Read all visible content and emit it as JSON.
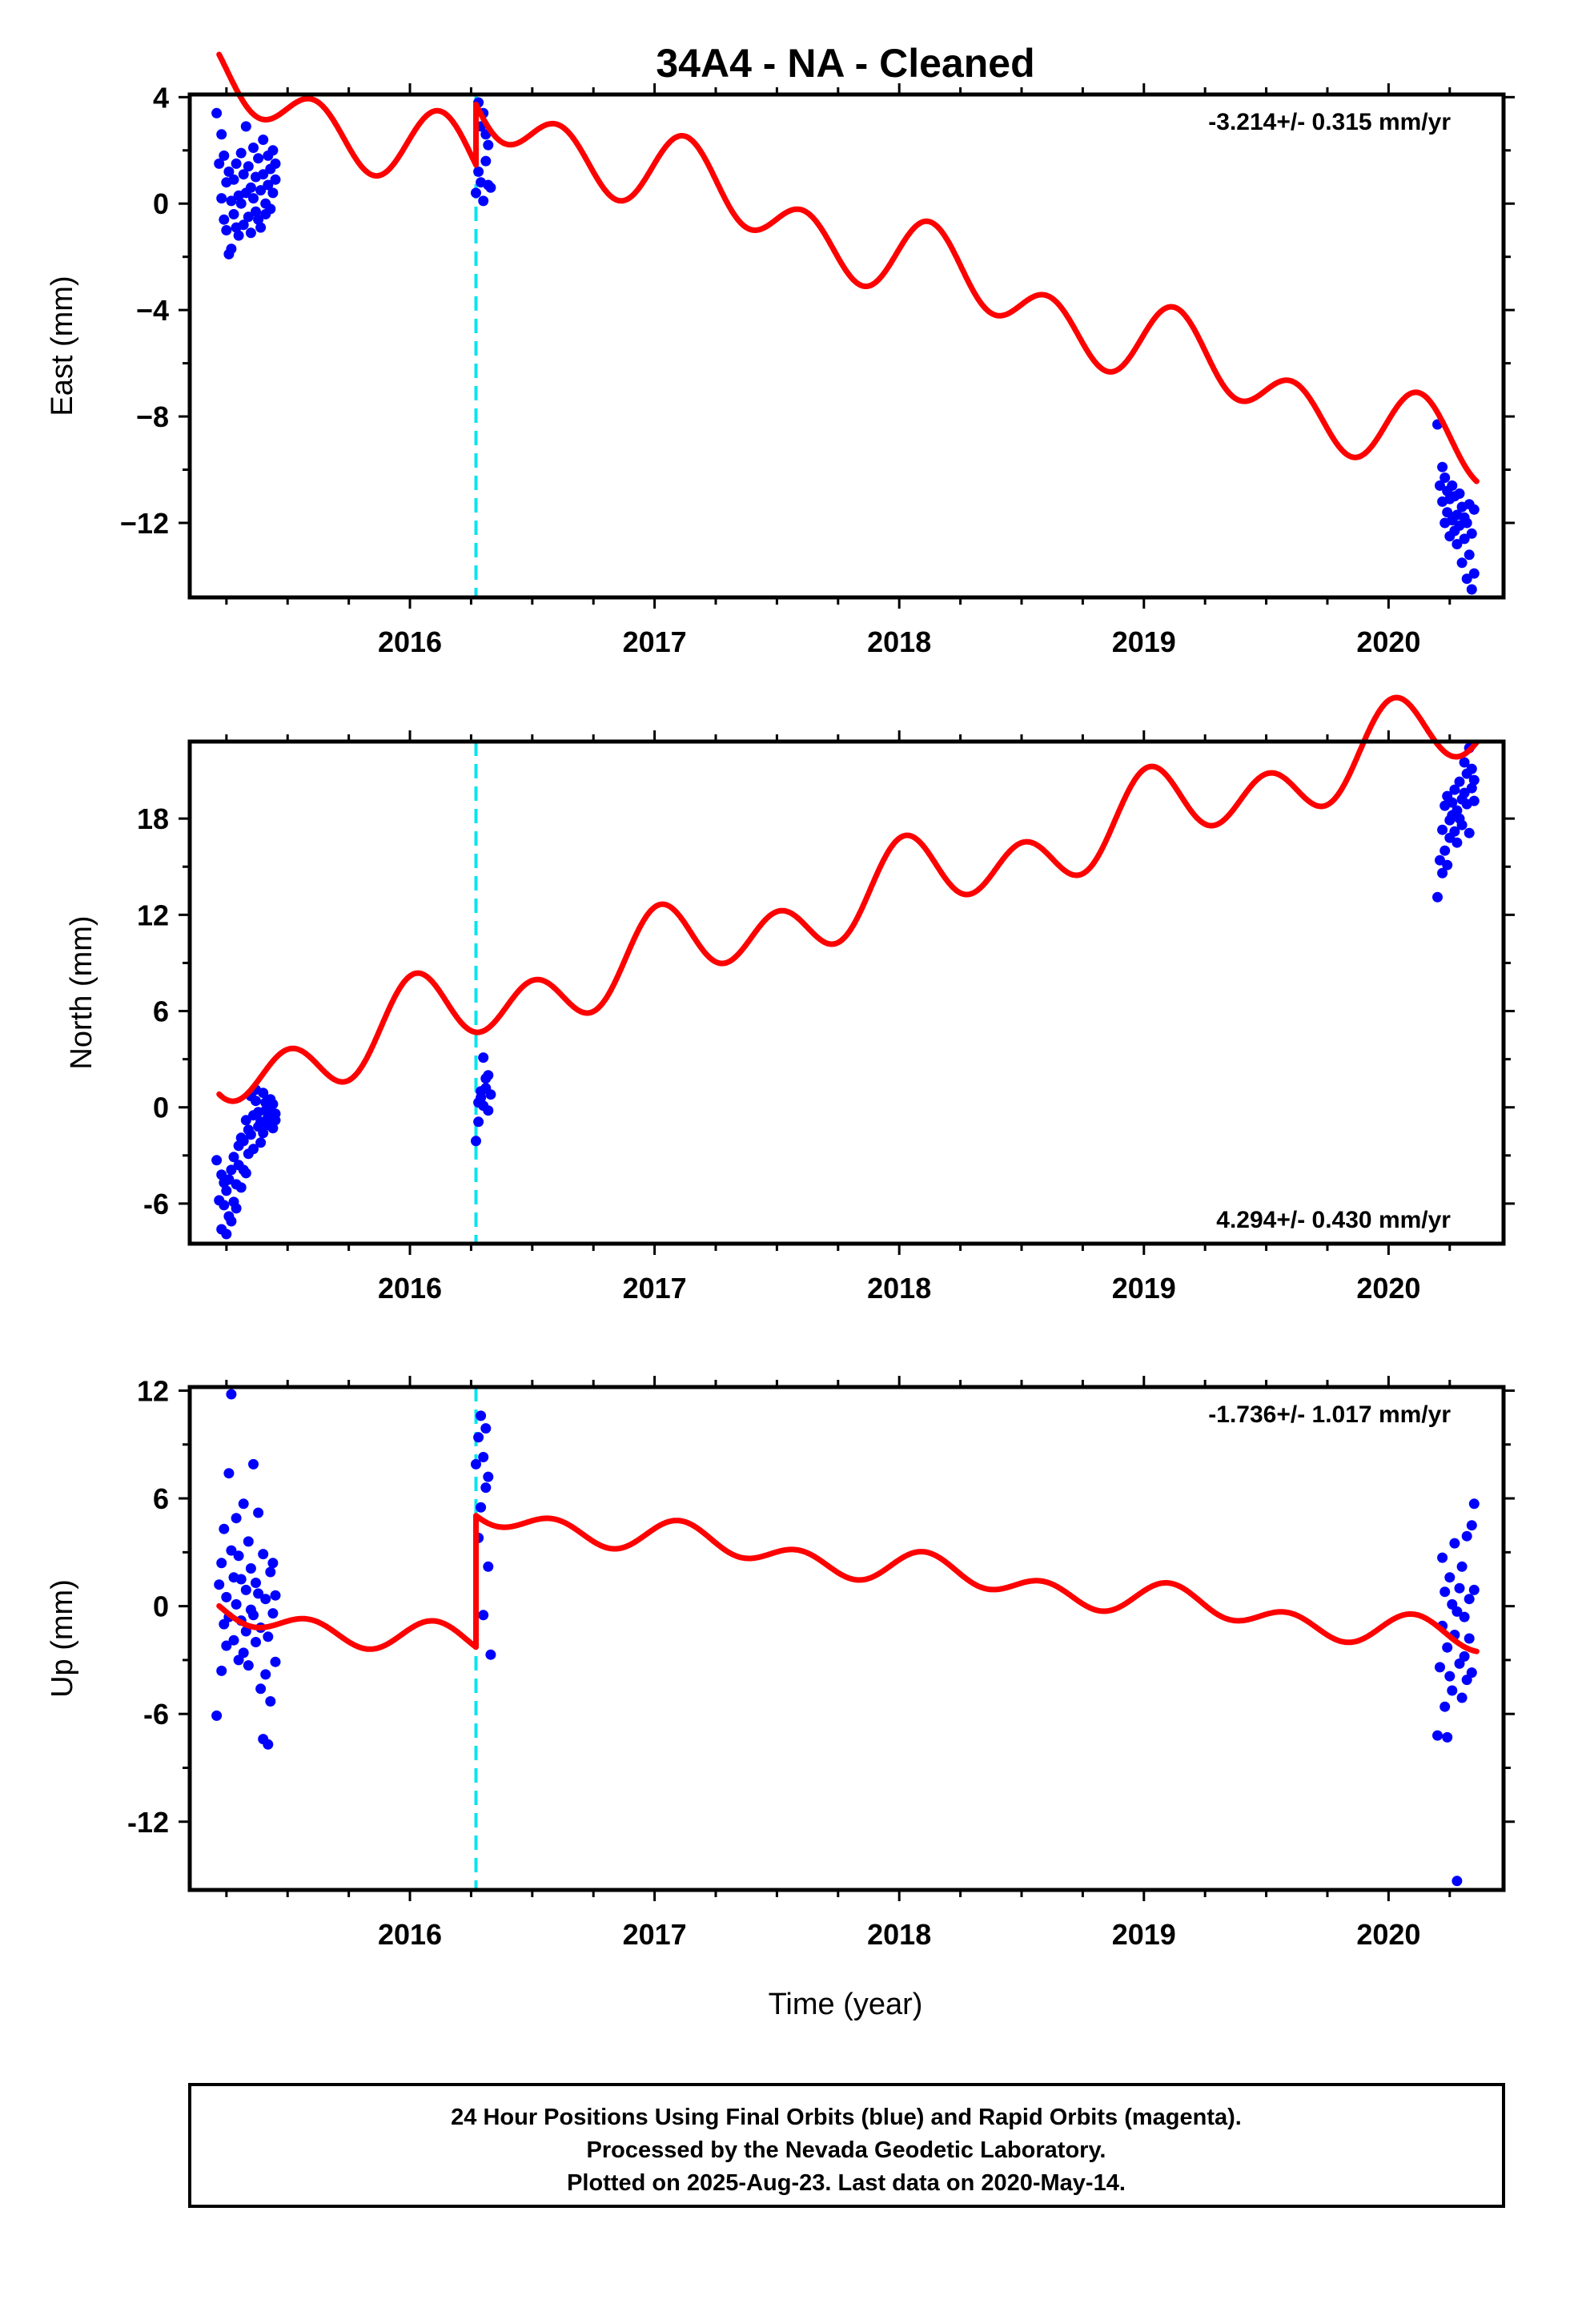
{
  "title": "34A4  - NA - Cleaned",
  "footer": {
    "lines": [
      "24 Hour Positions Using Final Orbits (blue) and Rapid Orbits (magenta).",
      "Processed by the Nevada Geodetic Laboratory.",
      "Plotted on 2025-Aug-23. Last data on 2020-May-14."
    ]
  },
  "colors": {
    "final_orbit_points": "#0000ff",
    "model_fit": "#ff0000",
    "antenna_change": "#00e5ee",
    "frame": "#000000"
  },
  "chart_data": [
    {
      "type": "scatter",
      "component": "east",
      "ylabel": "East (mm)",
      "xlabel": "",
      "xlim": [
        2015.1,
        2020.47
      ],
      "ylim": [
        -14.8,
        4.1
      ],
      "xticks": [
        2016,
        2017,
        2018,
        2019,
        2020
      ],
      "xtick_labels": [
        "2016",
        "2017",
        "2018",
        "2019",
        "2020"
      ],
      "yticks": [
        4,
        0,
        -4,
        -8,
        -12
      ],
      "ytick_labels": [
        "4",
        "0",
        "−4",
        "−8",
        "−12"
      ],
      "rate_label": "-3.214+/- 0.315 mm/yr",
      "rate_position": "top-right",
      "discontinuity_x": 2016.27,
      "model": {
        "rate": -3.214,
        "segments": [
          {
            "x_start": 2015.22,
            "x_end": 2016.27,
            "offset": 4.6,
            "x_ref": 2015.22,
            "annual_amp": 0.7,
            "annual_phase": 0.35,
            "semiannual_amp": 1.15,
            "semiannual_phase": 0.1
          },
          {
            "x_start": 2016.27,
            "x_end": 2020.36,
            "offset": 3.5,
            "x_ref": 2016.27,
            "annual_amp": 0.7,
            "annual_phase": 0.35,
            "semiannual_amp": 1.15,
            "semiannual_phase": 0.1
          }
        ]
      },
      "series": [
        {
          "x": [
            2015.21,
            2015.22,
            2015.23,
            2015.23,
            2015.24,
            2015.24,
            2015.25,
            2015.25,
            2015.26,
            2015.26,
            2015.27,
            2015.27,
            2015.28,
            2015.28,
            2015.29,
            2015.29,
            2015.3,
            2015.3,
            2015.31,
            2015.31,
            2015.32,
            2015.32,
            2015.33,
            2015.33,
            2015.34,
            2015.34,
            2015.35,
            2015.35,
            2015.36,
            2015.36,
            2015.37,
            2015.37,
            2015.38,
            2015.38,
            2015.39,
            2015.39,
            2015.4,
            2015.4,
            2015.41,
            2015.41,
            2015.42,
            2015.42,
            2015.43,
            2015.43,
            2015.44,
            2015.44,
            2015.45,
            2015.45,
            2016.27,
            2016.28,
            2016.28,
            2016.29,
            2016.29,
            2016.3,
            2016.3,
            2016.31,
            2016.31,
            2016.32,
            2016.32,
            2016.33,
            2020.2,
            2020.21,
            2020.22,
            2020.22,
            2020.23,
            2020.23,
            2020.24,
            2020.24,
            2020.25,
            2020.25,
            2020.26,
            2020.26,
            2020.27,
            2020.27,
            2020.28,
            2020.28,
            2020.29,
            2020.29,
            2020.3,
            2020.3,
            2020.31,
            2020.31,
            2020.32,
            2020.32,
            2020.33,
            2020.33,
            2020.34,
            2020.34,
            2020.35,
            2020.35
          ],
          "y": [
            3.4,
            1.5,
            2.6,
            0.2,
            1.8,
            -0.6,
            0.8,
            -1.0,
            1.2,
            -1.9,
            0.1,
            -1.7,
            0.9,
            -0.4,
            1.5,
            -0.9,
            0.3,
            -1.2,
            1.9,
            0.0,
            1.1,
            -0.8,
            2.9,
            0.4,
            1.4,
            -0.5,
            0.6,
            -1.1,
            2.1,
            0.2,
            1.0,
            -0.3,
            1.7,
            -0.6,
            0.5,
            -0.9,
            2.4,
            1.1,
            0.0,
            -0.4,
            1.8,
            0.7,
            1.3,
            -0.2,
            2.0,
            0.4,
            0.9,
            1.5,
            0.4,
            1.2,
            3.8,
            0.8,
            2.9,
            3.4,
            0.1,
            1.6,
            2.6,
            0.7,
            2.2,
            0.6,
            -8.3,
            -10.6,
            -11.2,
            -9.9,
            -12.0,
            -10.3,
            -11.6,
            -10.8,
            -12.5,
            -11.1,
            -10.6,
            -11.9,
            -12.3,
            -11.0,
            -11.7,
            -12.8,
            -10.9,
            -12.1,
            -11.4,
            -13.5,
            -12.6,
            -11.8,
            -14.1,
            -12.0,
            -11.3,
            -13.2,
            -14.5,
            -12.4,
            -11.5,
            -13.9
          ]
        }
      ]
    },
    {
      "type": "scatter",
      "component": "north",
      "ylabel": "North (mm)",
      "xlabel": "",
      "xlim": [
        2015.1,
        2020.47
      ],
      "ylim": [
        -8.5,
        22.8
      ],
      "xticks": [
        2016,
        2017,
        2018,
        2019,
        2020
      ],
      "xtick_labels": [
        "2016",
        "2017",
        "2018",
        "2019",
        "2020"
      ],
      "yticks": [
        18,
        12,
        6,
        0,
        -6
      ],
      "ytick_labels": [
        "18",
        "12",
        "6",
        "0",
        "-6"
      ],
      "rate_label": "4.294+/- 0.430 mm/yr",
      "rate_position": "bottom-right",
      "discontinuity_x": 2016.27,
      "model": {
        "rate": 4.294,
        "segments": [
          {
            "x_start": 2015.22,
            "x_end": 2020.36,
            "offset": 1.75,
            "x_ref": 2015.22,
            "annual_amp": 1.3,
            "annual_phase": 1.2,
            "semiannual_amp": 1.9,
            "semiannual_phase": 1.4
          }
        ]
      },
      "series": [
        {
          "x": [
            2015.21,
            2015.22,
            2015.23,
            2015.23,
            2015.24,
            2015.24,
            2015.25,
            2015.25,
            2015.26,
            2015.26,
            2015.27,
            2015.27,
            2015.28,
            2015.28,
            2015.29,
            2015.29,
            2015.3,
            2015.3,
            2015.31,
            2015.31,
            2015.32,
            2015.32,
            2015.33,
            2015.33,
            2015.34,
            2015.34,
            2015.35,
            2015.35,
            2015.36,
            2015.36,
            2015.37,
            2015.37,
            2015.38,
            2015.38,
            2015.39,
            2015.39,
            2015.4,
            2015.4,
            2015.41,
            2015.41,
            2015.42,
            2015.42,
            2015.43,
            2015.43,
            2015.44,
            2015.44,
            2015.45,
            2015.45,
            2016.27,
            2016.28,
            2016.28,
            2016.29,
            2016.29,
            2016.3,
            2016.3,
            2016.31,
            2016.31,
            2016.32,
            2016.32,
            2016.33,
            2020.2,
            2020.21,
            2020.22,
            2020.22,
            2020.23,
            2020.23,
            2020.24,
            2020.24,
            2020.25,
            2020.25,
            2020.26,
            2020.26,
            2020.27,
            2020.27,
            2020.28,
            2020.28,
            2020.29,
            2020.29,
            2020.3,
            2020.3,
            2020.31,
            2020.31,
            2020.32,
            2020.32,
            2020.33,
            2020.33,
            2020.34,
            2020.34,
            2020.35,
            2020.35
          ],
          "y": [
            -3.3,
            -5.8,
            -4.2,
            -7.6,
            -4.7,
            -6.1,
            -7.9,
            -5.2,
            -6.8,
            -4.5,
            -7.1,
            -3.9,
            -5.9,
            -3.1,
            -4.8,
            -6.3,
            -2.4,
            -3.6,
            -5.0,
            -1.9,
            -3.9,
            -2.1,
            -0.8,
            -4.1,
            -1.4,
            -2.9,
            0.7,
            -1.7,
            -0.5,
            -2.6,
            0.4,
            1.1,
            -1.2,
            -0.3,
            -2.2,
            -0.9,
            0.9,
            -1.6,
            -0.2,
            0.3,
            -1.1,
            -0.6,
            0.5,
            -0.1,
            -1.3,
            0.2,
            -0.8,
            -0.4,
            -2.1,
            0.3,
            -0.9,
            1.0,
            0.6,
            3.1,
            0.1,
            1.8,
            1.2,
            -0.2,
            2.0,
            0.8,
            13.1,
            15.4,
            17.3,
            14.6,
            18.8,
            16.0,
            19.4,
            15.1,
            17.9,
            16.8,
            19.0,
            18.2,
            17.2,
            19.8,
            18.5,
            16.5,
            20.3,
            18.0,
            19.2,
            17.6,
            21.5,
            19.6,
            18.9,
            20.8,
            17.1,
            22.4,
            19.9,
            21.1,
            20.4,
            19.1
          ]
        }
      ]
    },
    {
      "type": "scatter",
      "component": "up",
      "ylabel": "Up (mm)",
      "xlabel": "Time (year)",
      "xlim": [
        2015.1,
        2020.47
      ],
      "ylim": [
        -15.8,
        12.2
      ],
      "xticks": [
        2016,
        2017,
        2018,
        2019,
        2020
      ],
      "xtick_labels": [
        "2016",
        "2017",
        "2018",
        "2019",
        "2020"
      ],
      "yticks": [
        12,
        6,
        0,
        -6,
        -12
      ],
      "ytick_labels": [
        "12",
        "6",
        "0",
        "-6",
        "-12"
      ],
      "rate_label": "-1.736+/- 1.017 mm/yr",
      "rate_position": "top-right",
      "discontinuity_x": 2016.27,
      "model": {
        "rate": -1.736,
        "segments": [
          {
            "x_start": 2015.22,
            "x_end": 2016.27,
            "offset": -0.4,
            "x_ref": 2015.22,
            "annual_amp": 0.45,
            "annual_phase": 0.5,
            "semiannual_amp": 0.7,
            "semiannual_phase": 0.4
          },
          {
            "x_start": 2016.27,
            "x_end": 2020.36,
            "offset": 5.1,
            "x_ref": 2016.27,
            "annual_amp": 0.45,
            "annual_phase": 0.5,
            "semiannual_amp": 0.7,
            "semiannual_phase": 0.4
          }
        ]
      },
      "series": [
        {
          "x": [
            2015.21,
            2015.22,
            2015.23,
            2015.23,
            2015.24,
            2015.24,
            2015.25,
            2015.25,
            2015.26,
            2015.26,
            2015.27,
            2015.27,
            2015.28,
            2015.28,
            2015.29,
            2015.29,
            2015.3,
            2015.3,
            2015.31,
            2015.31,
            2015.32,
            2015.32,
            2015.33,
            2015.33,
            2015.34,
            2015.34,
            2015.35,
            2015.35,
            2015.36,
            2015.36,
            2015.37,
            2015.37,
            2015.38,
            2015.38,
            2015.39,
            2015.39,
            2015.4,
            2015.4,
            2015.41,
            2015.41,
            2015.42,
            2015.42,
            2015.43,
            2015.43,
            2015.44,
            2015.44,
            2015.45,
            2015.45,
            2016.27,
            2016.28,
            2016.28,
            2016.29,
            2016.29,
            2016.3,
            2016.3,
            2016.31,
            2016.31,
            2016.32,
            2016.32,
            2016.33,
            2020.2,
            2020.21,
            2020.22,
            2020.22,
            2020.23,
            2020.23,
            2020.24,
            2020.24,
            2020.25,
            2020.25,
            2020.26,
            2020.26,
            2020.27,
            2020.27,
            2020.28,
            2020.28,
            2020.29,
            2020.29,
            2020.3,
            2020.3,
            2020.31,
            2020.31,
            2020.32,
            2020.32,
            2020.33,
            2020.33,
            2020.34,
            2020.34,
            2020.35,
            2020.35
          ],
          "y": [
            -6.1,
            1.2,
            -3.6,
            2.4,
            -1.0,
            4.3,
            0.5,
            -2.2,
            7.4,
            -0.6,
            3.1,
            11.8,
            1.6,
            -1.9,
            4.9,
            0.1,
            -3.0,
            2.8,
            -0.8,
            1.5,
            -2.6,
            5.7,
            0.9,
            -1.4,
            3.6,
            -3.3,
            -0.2,
            2.1,
            7.9,
            -0.5,
            1.3,
            -2.0,
            5.2,
            0.7,
            -4.6,
            -1.2,
            -7.4,
            2.9,
            -3.8,
            0.4,
            -7.7,
            -1.7,
            1.9,
            -5.3,
            -0.4,
            2.4,
            -3.1,
            0.6,
            7.9,
            3.8,
            9.4,
            5.5,
            10.6,
            8.3,
            -0.5,
            6.6,
            9.9,
            2.2,
            7.2,
            -2.7,
            -7.2,
            -3.4,
            2.7,
            -1.1,
            -5.6,
            0.8,
            -7.3,
            -2.3,
            1.6,
            -3.9,
            0.1,
            -4.7,
            3.5,
            -1.6,
            -15.3,
            -0.3,
            -3.2,
            1.0,
            -5.1,
            2.2,
            -2.8,
            -0.6,
            3.9,
            -4.1,
            0.4,
            -1.8,
            4.5,
            -3.7,
            0.9,
            5.7
          ]
        }
      ]
    }
  ]
}
